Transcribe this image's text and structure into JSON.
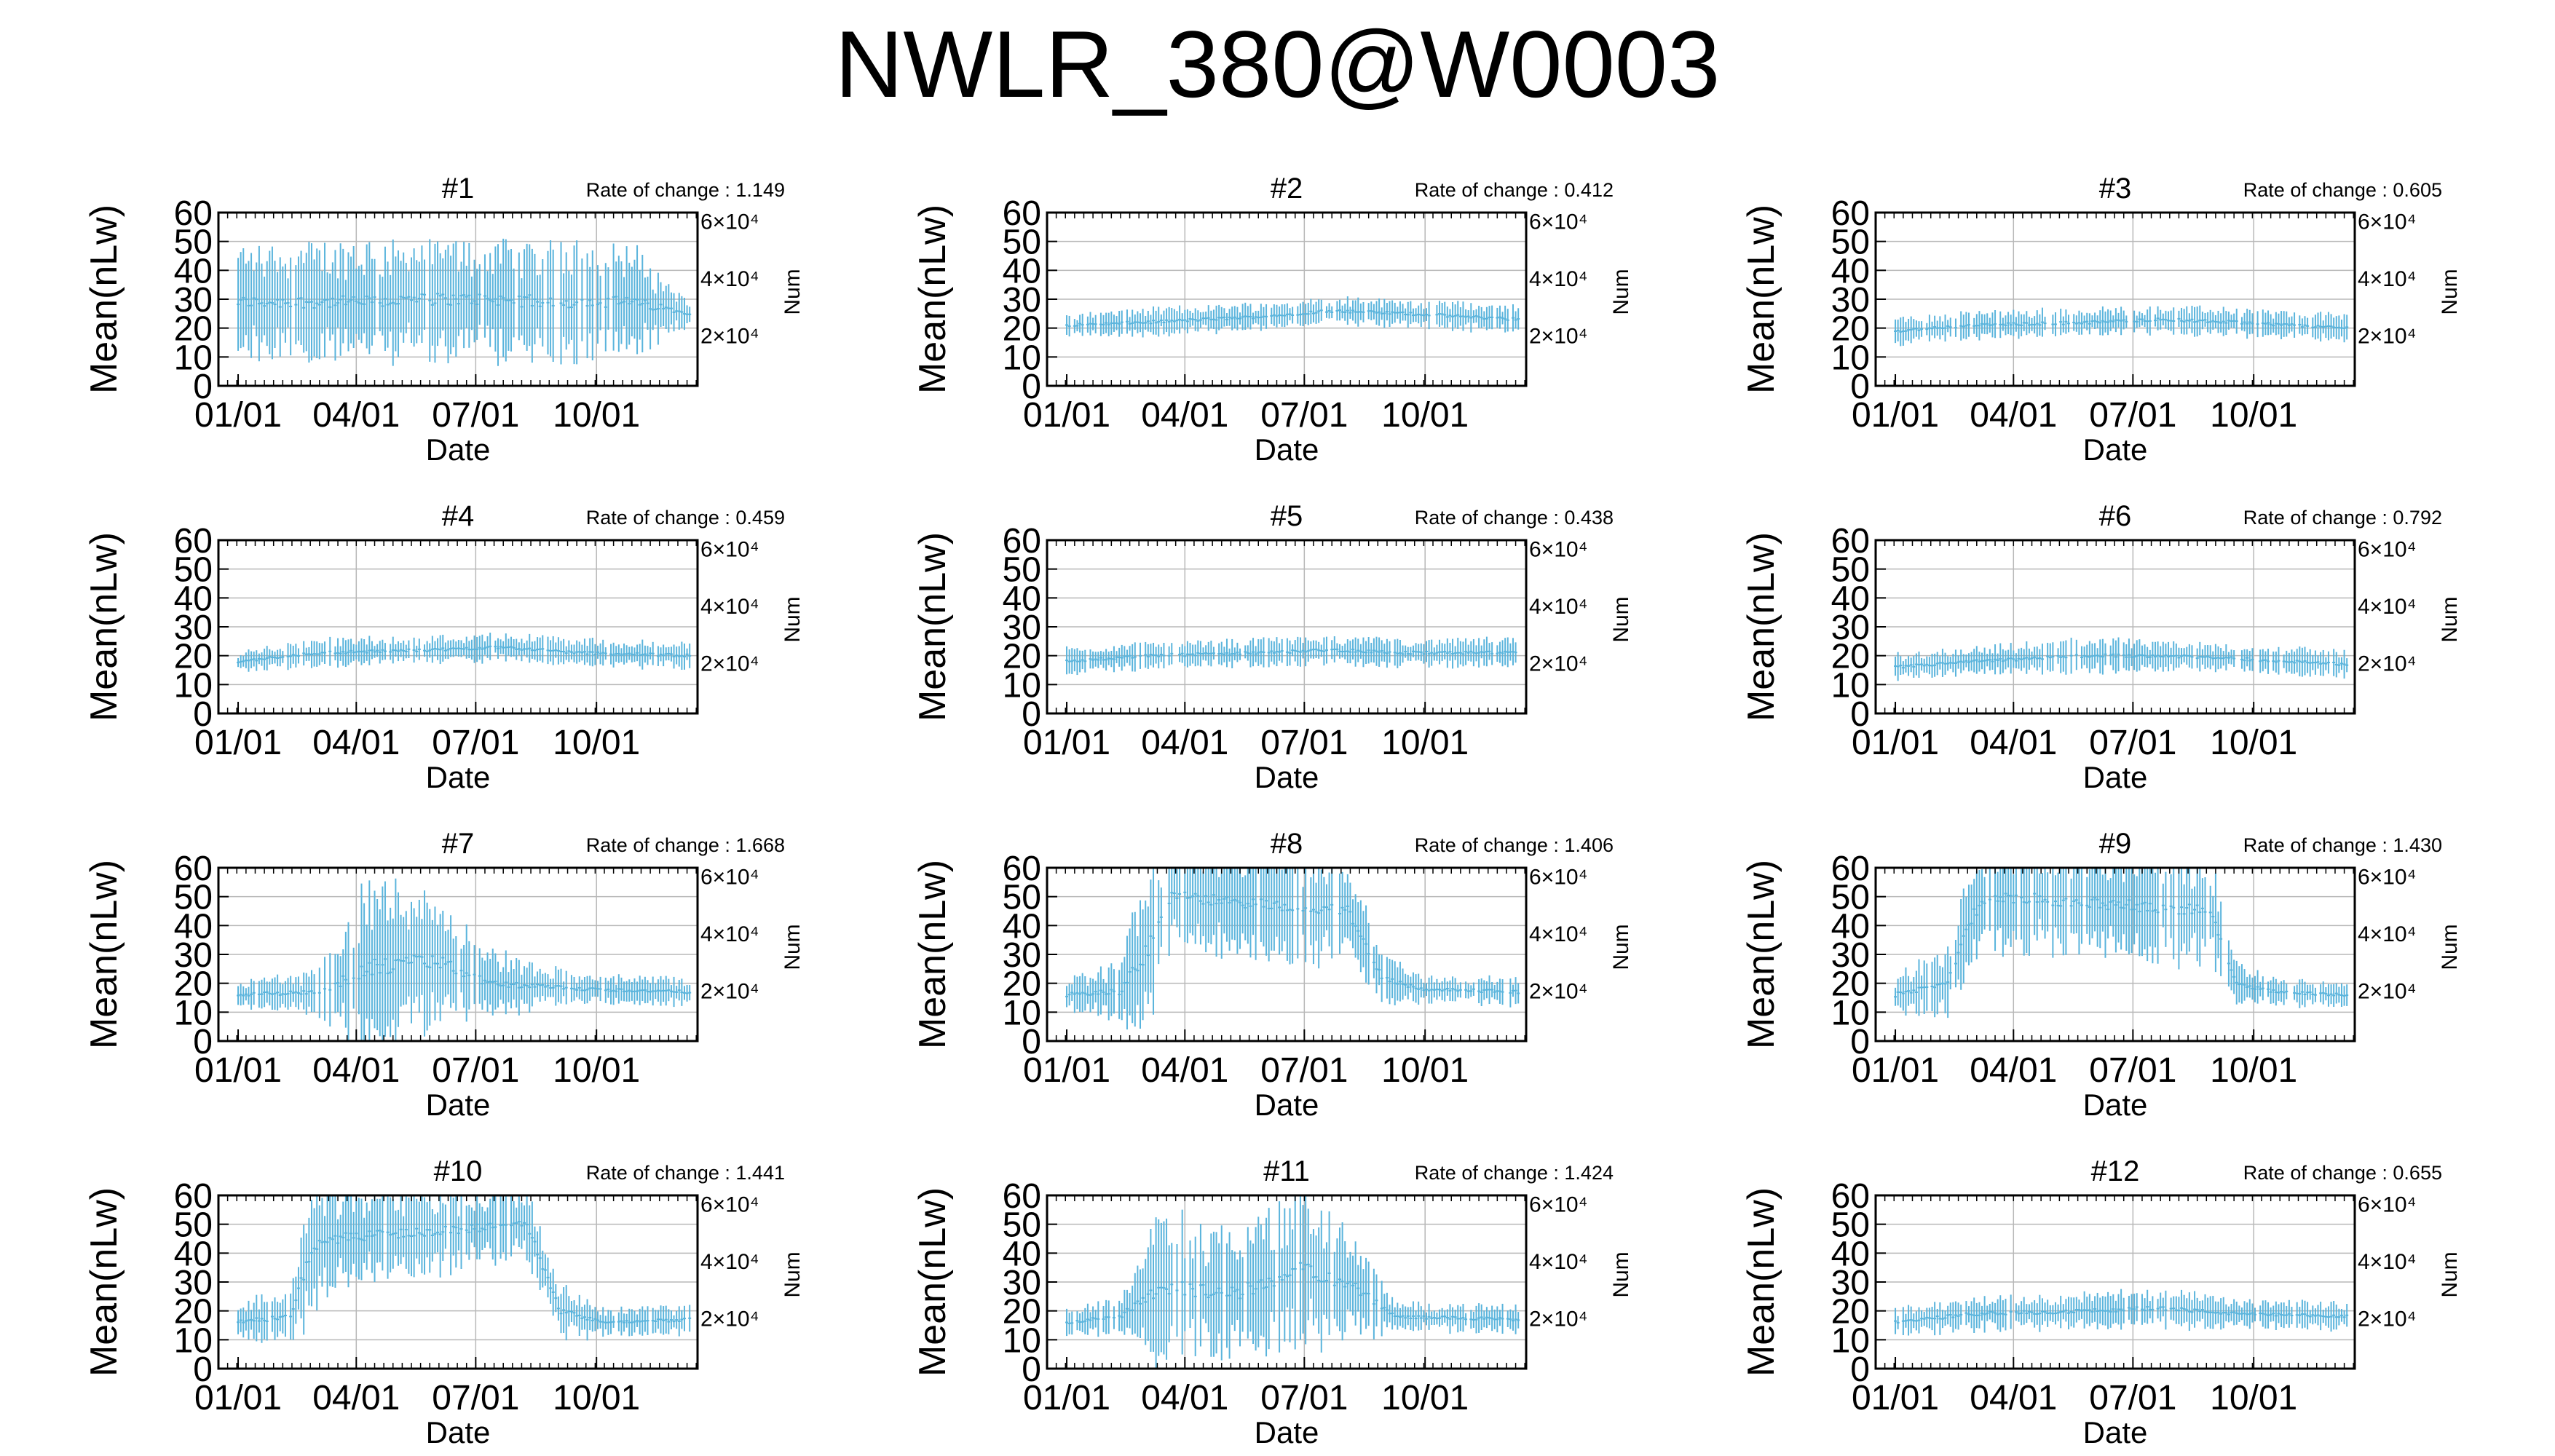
{
  "title": "NWLR_380@W0003",
  "colors": {
    "bars": "#5ab4dc",
    "grid": "#b8b8b8",
    "frame": "#000000"
  },
  "chart_data": [
    {
      "type": "line",
      "title": "#1",
      "rate_label": "Rate of change : 1.149",
      "xlabel": "Date",
      "ylabel": "Mean(nLw)",
      "y2label": "Num",
      "ylim": [
        0,
        60
      ],
      "yticks": [
        0,
        10,
        20,
        30,
        40,
        50,
        60
      ],
      "xticks": [
        "01/01",
        "04/01",
        "07/01",
        "10/01"
      ],
      "y2ticks": [
        "2×10⁴",
        "4×10⁴",
        "6×10⁴"
      ],
      "grid": true,
      "series": [
        {
          "values": [
            [
              0,
              29,
              16
            ],
            [
              100,
              29,
              17
            ],
            [
              145,
              30,
              17
            ],
            [
              190,
              30,
              16
            ],
            [
              240,
              29,
              18
            ],
            [
              300,
              29,
              16
            ],
            [
              345,
              25,
              3
            ]
          ]
        }
      ]
    },
    {
      "type": "line",
      "title": "#2",
      "rate_label": "Rate of change : 0.412",
      "xlabel": "Date",
      "ylabel": "Mean(nLw)",
      "y2label": "Num",
      "ylim": [
        0,
        60
      ],
      "yticks": [
        0,
        10,
        20,
        30,
        40,
        50,
        60
      ],
      "xticks": [
        "01/01",
        "04/01",
        "07/01",
        "10/01"
      ],
      "y2ticks": [
        "2×10⁴",
        "4×10⁴",
        "6×10⁴"
      ],
      "grid": true,
      "series": [
        {
          "values": [
            [
              0,
              21,
              3
            ],
            [
              60,
              22,
              4
            ],
            [
              150,
              24,
              4
            ],
            [
              200,
              26,
              4
            ],
            [
              260,
              25,
              4
            ],
            [
              345,
              23,
              4
            ]
          ]
        }
      ]
    },
    {
      "type": "line",
      "title": "#3",
      "rate_label": "Rate of change : 0.605",
      "xlabel": "Date",
      "ylabel": "Mean(nLw)",
      "y2label": "Num",
      "ylim": [
        0,
        60
      ],
      "yticks": [
        0,
        10,
        20,
        30,
        40,
        50,
        60
      ],
      "xticks": [
        "01/01",
        "04/01",
        "07/01",
        "10/01"
      ],
      "y2ticks": [
        "2×10⁴",
        "4×10⁴",
        "6×10⁴"
      ],
      "grid": true,
      "series": [
        {
          "values": [
            [
              0,
              19,
              4
            ],
            [
              60,
              21,
              4
            ],
            [
              150,
              22,
              4
            ],
            [
              200,
              23,
              4
            ],
            [
              260,
              22,
              4
            ],
            [
              345,
              20,
              4
            ]
          ]
        }
      ]
    },
    {
      "type": "line",
      "title": "#4",
      "rate_label": "Rate of change : 0.459",
      "xlabel": "Date",
      "ylabel": "Mean(nLw)",
      "y2label": "Num",
      "ylim": [
        0,
        60
      ],
      "yticks": [
        0,
        10,
        20,
        30,
        40,
        50,
        60
      ],
      "xticks": [
        "01/01",
        "04/01",
        "07/01",
        "10/01"
      ],
      "y2ticks": [
        "2×10⁴",
        "4×10⁴",
        "6×10⁴"
      ],
      "grid": true,
      "series": [
        {
          "values": [
            [
              0,
              18,
              3
            ],
            [
              60,
              21,
              4
            ],
            [
              150,
              22,
              4
            ],
            [
              200,
              23,
              4
            ],
            [
              260,
              21,
              4
            ],
            [
              345,
              20,
              4
            ]
          ]
        }
      ]
    },
    {
      "type": "line",
      "title": "#5",
      "rate_label": "Rate of change : 0.438",
      "xlabel": "Date",
      "ylabel": "Mean(nLw)",
      "y2label": "Num",
      "ylim": [
        0,
        60
      ],
      "yticks": [
        0,
        10,
        20,
        30,
        40,
        50,
        60
      ],
      "xticks": [
        "01/01",
        "04/01",
        "07/01",
        "10/01"
      ],
      "y2ticks": [
        "2×10⁴",
        "4×10⁴",
        "6×10⁴"
      ],
      "grid": true,
      "series": [
        {
          "values": [
            [
              0,
              18,
              4
            ],
            [
              60,
              20,
              4
            ],
            [
              150,
              21,
              4
            ],
            [
              200,
              22,
              4
            ],
            [
              260,
              21,
              4
            ],
            [
              345,
              21,
              4
            ]
          ]
        }
      ]
    },
    {
      "type": "line",
      "title": "#6",
      "rate_label": "Rate of change : 0.792",
      "xlabel": "Date",
      "ylabel": "Mean(nLw)",
      "y2label": "Num",
      "ylim": [
        0,
        60
      ],
      "yticks": [
        0,
        10,
        20,
        30,
        40,
        50,
        60
      ],
      "xticks": [
        "01/01",
        "04/01",
        "07/01",
        "10/01"
      ],
      "y2ticks": [
        "2×10⁴",
        "4×10⁴",
        "6×10⁴"
      ],
      "grid": true,
      "series": [
        {
          "values": [
            [
              0,
              16,
              4
            ],
            [
              60,
              18,
              4
            ],
            [
              150,
              20,
              5
            ],
            [
              200,
              20,
              4
            ],
            [
              260,
              19,
              4
            ],
            [
              345,
              17,
              4
            ]
          ]
        }
      ]
    },
    {
      "type": "line",
      "title": "#7",
      "rate_label": "Rate of change : 1.668",
      "xlabel": "Date",
      "ylabel": "Mean(nLw)",
      "y2label": "Num",
      "ylim": [
        0,
        60
      ],
      "yticks": [
        0,
        10,
        20,
        30,
        40,
        50,
        60
      ],
      "xticks": [
        "01/01",
        "04/01",
        "07/01",
        "10/01"
      ],
      "y2ticks": [
        "2×10⁴",
        "4×10⁴",
        "6×10⁴"
      ],
      "grid": true,
      "series": [
        {
          "values": [
            [
              0,
              16,
              4
            ],
            [
              60,
              17,
              6
            ],
            [
              100,
              25,
              25
            ],
            [
              150,
              28,
              20
            ],
            [
              190,
              20,
              10
            ],
            [
              260,
              18,
              4
            ],
            [
              345,
              17,
              4
            ]
          ]
        }
      ]
    },
    {
      "type": "line",
      "title": "#8",
      "rate_label": "Rate of change : 1.406",
      "xlabel": "Date",
      "ylabel": "Mean(nLw)",
      "y2label": "Num",
      "ylim": [
        0,
        60
      ],
      "yticks": [
        0,
        10,
        20,
        30,
        40,
        50,
        60
      ],
      "xticks": [
        "01/01",
        "04/01",
        "07/01",
        "10/01"
      ],
      "y2ticks": [
        "2×10⁴",
        "4×10⁴",
        "6×10⁴"
      ],
      "grid": true,
      "series": [
        {
          "values": [
            [
              0,
              16,
              5
            ],
            [
              40,
              17,
              8
            ],
            [
              60,
              30,
              25
            ],
            [
              80,
              50,
              15
            ],
            [
              215,
              45,
              15
            ],
            [
              240,
              22,
              8
            ],
            [
              270,
              18,
              4
            ],
            [
              345,
              17,
              4
            ]
          ]
        }
      ]
    },
    {
      "type": "line",
      "title": "#9",
      "rate_label": "Rate of change : 1.430",
      "xlabel": "Date",
      "ylabel": "Mean(nLw)",
      "y2label": "Num",
      "ylim": [
        0,
        60
      ],
      "yticks": [
        0,
        10,
        20,
        30,
        40,
        50,
        60
      ],
      "xticks": [
        "01/01",
        "04/01",
        "07/01",
        "10/01"
      ],
      "y2ticks": [
        "2×10⁴",
        "4×10⁴",
        "6×10⁴"
      ],
      "grid": true,
      "series": [
        {
          "values": [
            [
              0,
              16,
              6
            ],
            [
              40,
              20,
              10
            ],
            [
              60,
              45,
              15
            ],
            [
              80,
              50,
              15
            ],
            [
              240,
              45,
              15
            ],
            [
              260,
              20,
              6
            ],
            [
              290,
              17,
              4
            ],
            [
              345,
              16,
              4
            ]
          ]
        }
      ]
    },
    {
      "type": "line",
      "title": "#10",
      "rate_label": "Rate of change : 1.441",
      "xlabel": "Date",
      "ylabel": "Mean(nLw)",
      "y2label": "Num",
      "ylim": [
        0,
        60
      ],
      "yticks": [
        0,
        10,
        20,
        30,
        40,
        50,
        60
      ],
      "xticks": [
        "01/01",
        "04/01",
        "07/01",
        "10/01"
      ],
      "y2ticks": [
        "2×10⁴",
        "4×10⁴",
        "6×10⁴"
      ],
      "grid": true,
      "series": [
        {
          "values": [
            [
              0,
              16,
              6
            ],
            [
              40,
              18,
              8
            ],
            [
              55,
              40,
              20
            ],
            [
              70,
              45,
              15
            ],
            [
              220,
              50,
              10
            ],
            [
              245,
              20,
              8
            ],
            [
              280,
              16,
              4
            ],
            [
              345,
              17,
              4
            ]
          ]
        }
      ]
    },
    {
      "type": "line",
      "title": "#11",
      "rate_label": "Rate of change : 1.424",
      "xlabel": "Date",
      "ylabel": "Mean(nLw)",
      "y2label": "Num",
      "ylim": [
        0,
        60
      ],
      "yticks": [
        0,
        10,
        20,
        30,
        40,
        50,
        60
      ],
      "xticks": [
        "01/01",
        "04/01",
        "07/01",
        "10/01"
      ],
      "y2ticks": [
        "2×10⁴",
        "4×10⁴",
        "6×10⁴"
      ],
      "grid": true,
      "series": [
        {
          "values": [
            [
              0,
              16,
              4
            ],
            [
              40,
              18,
              6
            ],
            [
              70,
              28,
              22
            ],
            [
              130,
              26,
              18
            ],
            [
              180,
              35,
              22
            ],
            [
              220,
              28,
              15
            ],
            [
              250,
              18,
              4
            ],
            [
              345,
              17,
              4
            ]
          ]
        }
      ]
    },
    {
      "type": "line",
      "title": "#12",
      "rate_label": "Rate of change : 0.655",
      "xlabel": "Date",
      "ylabel": "Mean(nLw)",
      "y2label": "Num",
      "ylim": [
        0,
        60
      ],
      "yticks": [
        0,
        10,
        20,
        30,
        40,
        50,
        60
      ],
      "xticks": [
        "01/01",
        "04/01",
        "07/01",
        "10/01"
      ],
      "y2ticks": [
        "2×10⁴",
        "4×10⁴",
        "6×10⁴"
      ],
      "grid": true,
      "series": [
        {
          "values": [
            [
              0,
              16,
              4
            ],
            [
              60,
              19,
              5
            ],
            [
              150,
              20,
              5
            ],
            [
              200,
              21,
              6
            ],
            [
              260,
              19,
              4
            ],
            [
              345,
              18,
              4
            ]
          ]
        }
      ]
    }
  ]
}
